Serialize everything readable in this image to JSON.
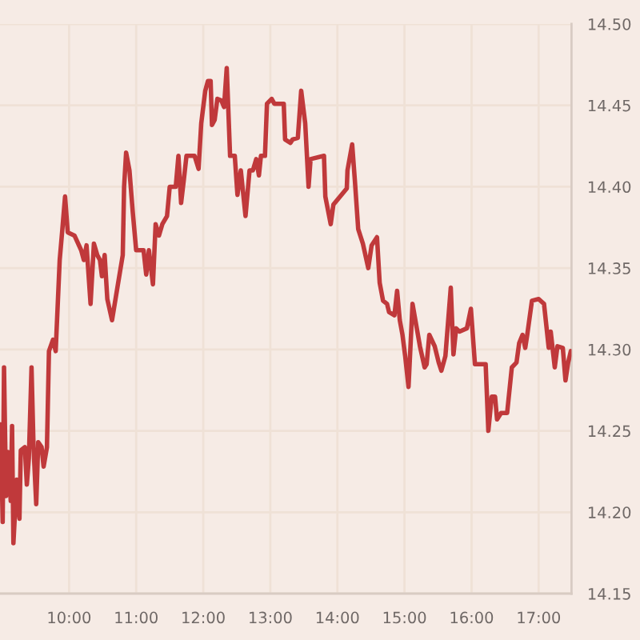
{
  "chart_data": {
    "type": "line",
    "x": [
      8.98,
      9.01,
      9.03,
      9.06,
      9.09,
      9.13,
      9.15,
      9.17,
      9.22,
      9.26,
      9.28,
      9.34,
      9.37,
      9.4,
      9.44,
      9.47,
      9.51,
      9.54,
      9.59,
      9.62,
      9.67,
      9.7,
      9.76,
      9.8,
      9.86,
      9.9,
      9.94,
      9.98,
      10.08,
      10.18,
      10.22,
      10.26,
      10.32,
      10.37,
      10.42,
      10.46,
      10.49,
      10.53,
      10.57,
      10.64,
      10.72,
      10.8,
      10.82,
      10.85,
      10.9,
      10.95,
      11.0,
      11.11,
      11.15,
      11.19,
      11.25,
      11.29,
      11.34,
      11.39,
      11.46,
      11.5,
      11.59,
      11.63,
      11.67,
      11.71,
      11.75,
      11.87,
      11.93,
      11.97,
      12.03,
      12.07,
      12.11,
      12.13,
      12.17,
      12.21,
      12.27,
      12.31,
      12.35,
      12.4,
      12.47,
      12.51,
      12.56,
      12.63,
      12.69,
      12.74,
      12.79,
      12.83,
      12.86,
      12.92,
      12.95,
      13.02,
      13.06,
      13.2,
      13.22,
      13.3,
      13.33,
      13.41,
      13.46,
      13.52,
      13.57,
      13.6,
      13.8,
      13.82,
      13.9,
      13.94,
      14.14,
      14.15,
      14.22,
      14.26,
      14.31,
      14.38,
      14.46,
      14.51,
      14.59,
      14.63,
      14.68,
      14.74,
      14.77,
      14.85,
      14.89,
      14.93,
      14.97,
      15.01,
      15.06,
      15.12,
      15.23,
      15.3,
      15.33,
      15.37,
      15.45,
      15.51,
      15.55,
      15.61,
      15.69,
      15.73,
      15.77,
      15.82,
      15.93,
      15.99,
      16.05,
      16.21,
      16.25,
      16.3,
      16.35,
      16.38,
      16.44,
      16.53,
      16.6,
      16.67,
      16.71,
      16.76,
      16.8,
      16.83,
      16.9,
      17.0,
      17.08,
      17.15,
      17.18,
      17.24,
      17.28,
      17.36,
      17.4,
      17.44,
      17.48
    ],
    "series": [
      {
        "color": "#c0393b",
        "values": [
          14.254,
          14.194,
          14.289,
          14.21,
          14.237,
          14.207,
          14.253,
          14.181,
          14.22,
          14.196,
          14.238,
          14.24,
          14.217,
          14.233,
          14.289,
          14.24,
          14.205,
          14.243,
          14.24,
          14.228,
          14.24,
          14.299,
          14.306,
          14.299,
          14.355,
          14.374,
          14.394,
          14.372,
          14.37,
          14.361,
          14.355,
          14.364,
          14.328,
          14.365,
          14.358,
          14.355,
          14.345,
          14.358,
          14.331,
          14.318,
          14.338,
          14.358,
          14.4,
          14.421,
          14.41,
          14.384,
          14.361,
          14.361,
          14.346,
          14.361,
          14.34,
          14.377,
          14.37,
          14.377,
          14.382,
          14.4,
          14.4,
          14.419,
          14.39,
          14.404,
          14.419,
          14.419,
          14.411,
          14.439,
          14.459,
          14.465,
          14.465,
          14.438,
          14.441,
          14.454,
          14.453,
          14.449,
          14.473,
          14.419,
          14.419,
          14.395,
          14.41,
          14.382,
          14.41,
          14.41,
          14.417,
          14.407,
          14.419,
          14.419,
          14.451,
          14.454,
          14.451,
          14.451,
          14.429,
          14.427,
          14.429,
          14.43,
          14.459,
          14.439,
          14.4,
          14.417,
          14.419,
          14.394,
          14.377,
          14.389,
          14.399,
          14.41,
          14.426,
          14.404,
          14.374,
          14.365,
          14.35,
          14.364,
          14.369,
          14.341,
          14.33,
          14.328,
          14.323,
          14.321,
          14.336,
          14.318,
          14.309,
          14.296,
          14.277,
          14.328,
          14.302,
          14.289,
          14.291,
          14.309,
          14.302,
          14.292,
          14.287,
          14.296,
          14.338,
          14.297,
          14.313,
          14.311,
          14.313,
          14.325,
          14.291,
          14.291,
          14.25,
          14.271,
          14.271,
          14.257,
          14.261,
          14.261,
          14.289,
          14.292,
          14.304,
          14.309,
          14.301,
          14.309,
          14.33,
          14.331,
          14.328,
          14.301,
          14.311,
          14.289,
          14.302,
          14.301,
          14.281,
          14.292,
          14.299
        ]
      }
    ],
    "xlim": [
      8.97,
      17.49
    ],
    "xticks": [
      {
        "value": 10,
        "label": "10:00"
      },
      {
        "value": 11,
        "label": "11:00"
      },
      {
        "value": 12,
        "label": "12:00"
      },
      {
        "value": 13,
        "label": "13:00"
      },
      {
        "value": 14,
        "label": "14:00"
      },
      {
        "value": 15,
        "label": "15:00"
      },
      {
        "value": 16,
        "label": "16:00"
      },
      {
        "value": 17,
        "label": "17:00"
      }
    ],
    "ylim": [
      14.15,
      14.5
    ],
    "yticks": [
      14.15,
      {
        "value": 14.2,
        "label": "14.20"
      },
      14.25,
      {
        "value": 14.3,
        "label": "14.30"
      },
      14.35,
      {
        "value": 14.4,
        "label": "14.40"
      },
      14.45,
      {
        "value": 14.5,
        "label": "14.50"
      }
    ],
    "grid": true,
    "line_style": "solid"
  }
}
